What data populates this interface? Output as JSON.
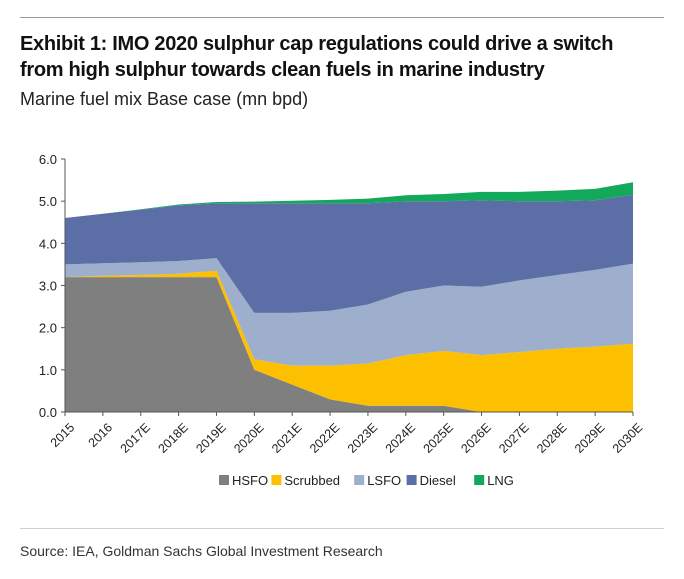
{
  "header": {
    "title": "Exhibit 1: IMO 2020 sulphur cap regulations could drive a switch from high sulphur towards clean fuels in marine industry",
    "subtitle": "Marine fuel mix Base case (mn bpd)"
  },
  "footer": {
    "source": "Source: IEA, Goldman Sachs Global Investment Research"
  },
  "chart_data": {
    "type": "area",
    "stacked": true,
    "title": "",
    "xlabel": "",
    "ylabel": "",
    "ylim": [
      0,
      6
    ],
    "yticks": [
      "0.0",
      "1.0",
      "2.0",
      "3.0",
      "4.0",
      "5.0",
      "6.0"
    ],
    "grid": false,
    "legend_position": "bottom",
    "categories": [
      "2015",
      "2016",
      "2017E",
      "2018E",
      "2019E",
      "2020E",
      "2021E",
      "2022E",
      "2023E",
      "2024E",
      "2025E",
      "2026E",
      "2027E",
      "2028E",
      "2029E",
      "2030E"
    ],
    "series": [
      {
        "name": "HSFO",
        "color": "#7f7f7f",
        "values": [
          3.2,
          3.2,
          3.2,
          3.2,
          3.2,
          1.0,
          0.65,
          0.3,
          0.15,
          0.15,
          0.15,
          0.0,
          0.0,
          0.0,
          0.0,
          0.0
        ]
      },
      {
        "name": "Scrubbed",
        "color": "#fcc000",
        "values": [
          0.0,
          0.03,
          0.05,
          0.08,
          0.15,
          0.25,
          0.45,
          0.8,
          1.0,
          1.2,
          1.3,
          1.35,
          1.42,
          1.5,
          1.55,
          1.62
        ]
      },
      {
        "name": "LSFO",
        "color": "#9eaecd",
        "values": [
          0.3,
          0.3,
          0.3,
          0.3,
          0.3,
          1.1,
          1.25,
          1.3,
          1.4,
          1.5,
          1.55,
          1.62,
          1.7,
          1.75,
          1.82,
          1.9
        ]
      },
      {
        "name": "Diesel",
        "color": "#5b6fa6",
        "values": [
          1.1,
          1.17,
          1.25,
          1.32,
          1.3,
          2.6,
          2.6,
          2.55,
          2.4,
          2.15,
          2.0,
          2.05,
          1.88,
          1.75,
          1.65,
          1.63
        ]
      },
      {
        "name": "LNG",
        "color": "#12a95a",
        "values": [
          0.0,
          0.0,
          0.01,
          0.02,
          0.03,
          0.04,
          0.06,
          0.08,
          0.11,
          0.14,
          0.17,
          0.2,
          0.22,
          0.25,
          0.27,
          0.3
        ]
      }
    ]
  }
}
